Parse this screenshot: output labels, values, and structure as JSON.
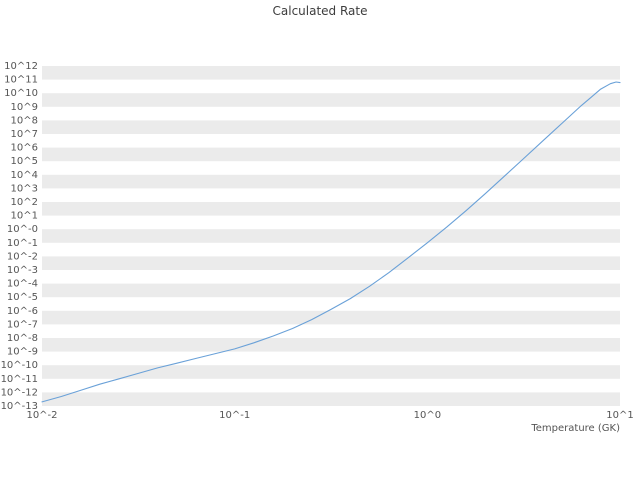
{
  "title_color": "#3d3d3d",
  "text_color": "#555555",
  "chart_data": {
    "type": "line",
    "title": "Calculated Rate",
    "xlabel": "Temperature (GK)",
    "ylabel": "",
    "xscale": "log",
    "yscale": "log",
    "xlim_log10": [
      -2,
      1
    ],
    "ylim_log10": [
      -13,
      12
    ],
    "grid": {
      "style": "horizontal-stripes",
      "stripe_color": "#ebebeb",
      "background": "#ffffff"
    },
    "legend": "none",
    "x_ticks": [
      {
        "log10": -2,
        "label": "10^-2"
      },
      {
        "log10": -1,
        "label": "10^-1"
      },
      {
        "log10": 0,
        "label": "10^0"
      },
      {
        "log10": 1,
        "label": "10^1"
      }
    ],
    "y_ticks": [
      {
        "log10": 12,
        "label": "10^12"
      },
      {
        "log10": 11,
        "label": "10^11"
      },
      {
        "log10": 10,
        "label": "10^10"
      },
      {
        "log10": 9,
        "label": "10^9"
      },
      {
        "log10": 8,
        "label": "10^8"
      },
      {
        "log10": 7,
        "label": "10^7"
      },
      {
        "log10": 6,
        "label": "10^6"
      },
      {
        "log10": 5,
        "label": "10^5"
      },
      {
        "log10": 4,
        "label": "10^4"
      },
      {
        "log10": 3,
        "label": "10^3"
      },
      {
        "log10": 2,
        "label": "10^2"
      },
      {
        "log10": 1,
        "label": "10^1"
      },
      {
        "log10": 0,
        "label": "10^-0"
      },
      {
        "log10": -1,
        "label": "10^-1"
      },
      {
        "log10": -2,
        "label": "10^-2"
      },
      {
        "log10": -3,
        "label": "10^-3"
      },
      {
        "log10": -4,
        "label": "10^-4"
      },
      {
        "log10": -5,
        "label": "10^-5"
      },
      {
        "log10": -6,
        "label": "10^-6"
      },
      {
        "log10": -7,
        "label": "10^-7"
      },
      {
        "log10": -8,
        "label": "10^-8"
      },
      {
        "log10": -9,
        "label": "10^-9"
      },
      {
        "log10": -10,
        "label": "10^-10"
      },
      {
        "log10": -11,
        "label": "10^-11"
      },
      {
        "log10": -12,
        "label": "10^-12"
      },
      {
        "log10": -13,
        "label": "10^-13"
      }
    ],
    "series": [
      {
        "name": "calculated-rate",
        "color": "#6aa1d8",
        "log10_x": [
          -2.0,
          -1.9,
          -1.8,
          -1.7,
          -1.6,
          -1.5,
          -1.4,
          -1.3,
          -1.2,
          -1.1,
          -1.0,
          -0.9,
          -0.8,
          -0.7,
          -0.6,
          -0.5,
          -0.4,
          -0.3,
          -0.2,
          -0.1,
          0.0,
          0.1,
          0.2,
          0.3,
          0.4,
          0.5,
          0.6,
          0.7,
          0.8,
          0.85,
          0.9,
          0.95,
          0.98,
          1.0
        ],
        "log10_y": [
          -12.7,
          -12.3,
          -11.85,
          -11.4,
          -11.0,
          -10.6,
          -10.2,
          -9.85,
          -9.5,
          -9.15,
          -8.8,
          -8.35,
          -7.85,
          -7.3,
          -6.65,
          -5.9,
          -5.1,
          -4.2,
          -3.2,
          -2.1,
          -1.0,
          0.15,
          1.35,
          2.6,
          3.9,
          5.2,
          6.5,
          7.8,
          9.1,
          9.7,
          10.3,
          10.7,
          10.82,
          10.78
        ]
      }
    ]
  }
}
